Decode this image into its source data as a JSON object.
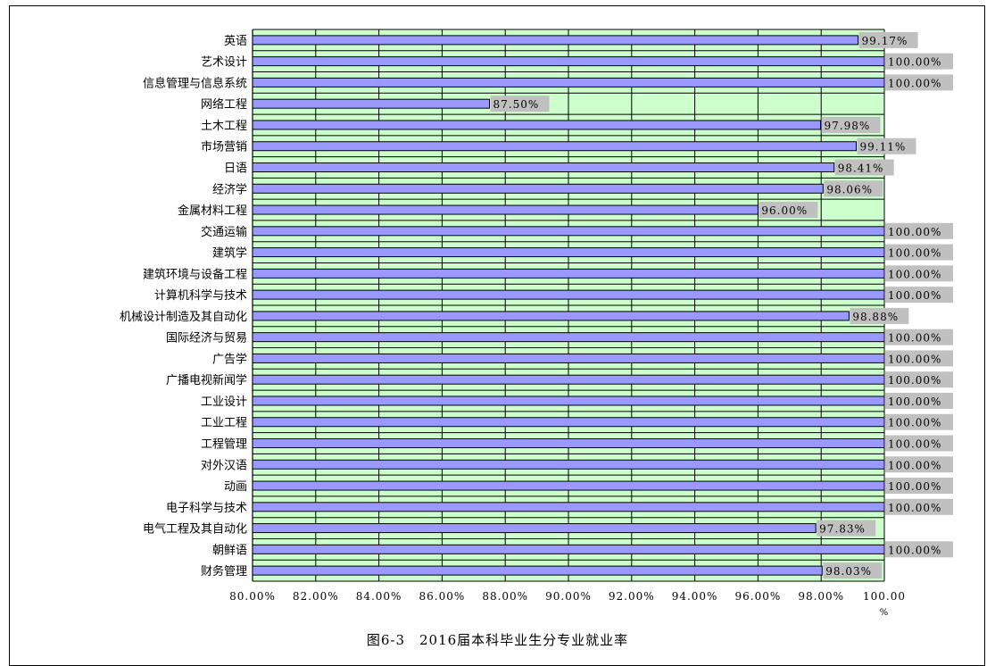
{
  "caption": "图6-3　2016届本科毕业生分专业就业率",
  "chart_data": {
    "type": "bar",
    "orientation": "horizontal",
    "categories": [
      "英语",
      "艺术设计",
      "信息管理与信息系统",
      "网络工程",
      "土木工程",
      "市场营销",
      "日语",
      "经济学",
      "金属材料工程",
      "交通运输",
      "建筑学",
      "建筑环境与设备工程",
      "计算机科学与技术",
      "机械设计制造及其自动化",
      "国际经济与贸易",
      "广告学",
      "广播电视新闻学",
      "工业设计",
      "工业工程",
      "工程管理",
      "对外汉语",
      "动画",
      "电子科学与技术",
      "电气工程及其自动化",
      "朝鲜语",
      "财务管理"
    ],
    "values": [
      99.17,
      100.0,
      100.0,
      87.5,
      97.98,
      99.11,
      98.41,
      98.06,
      96.0,
      100.0,
      100.0,
      100.0,
      100.0,
      98.88,
      100.0,
      100.0,
      100.0,
      100.0,
      100.0,
      100.0,
      100.0,
      100.0,
      100.0,
      97.83,
      100.0,
      98.03
    ],
    "data_labels": [
      "99.17%",
      "100.00%",
      "100.00%",
      "87.50%",
      "97.98%",
      "99.11%",
      "98.41%",
      "98.06%",
      "96.00%",
      "100.00%",
      "100.00%",
      "100.00%",
      "100.00%",
      "98.88%",
      "100.00%",
      "100.00%",
      "100.00%",
      "100.00%",
      "100.00%",
      "100.00%",
      "100.00%",
      "100.00%",
      "100.00%",
      "97.83%",
      "100.00%",
      "98.03%"
    ],
    "x_ticks": [
      80,
      82,
      84,
      86,
      88,
      90,
      92,
      94,
      96,
      98,
      100
    ],
    "x_tick_labels": [
      "80.00%",
      "82.00%",
      "84.00%",
      "86.00%",
      "88.00%",
      "90.00%",
      "92.00%",
      "94.00%",
      "96.00%",
      "98.00%",
      "100.00\n%"
    ],
    "xlim": [
      80,
      100
    ],
    "grid": true,
    "colors": {
      "plot_background": "#CCFFCC",
      "bar": "#9999FF",
      "label_background": "#C0C0C0"
    }
  }
}
